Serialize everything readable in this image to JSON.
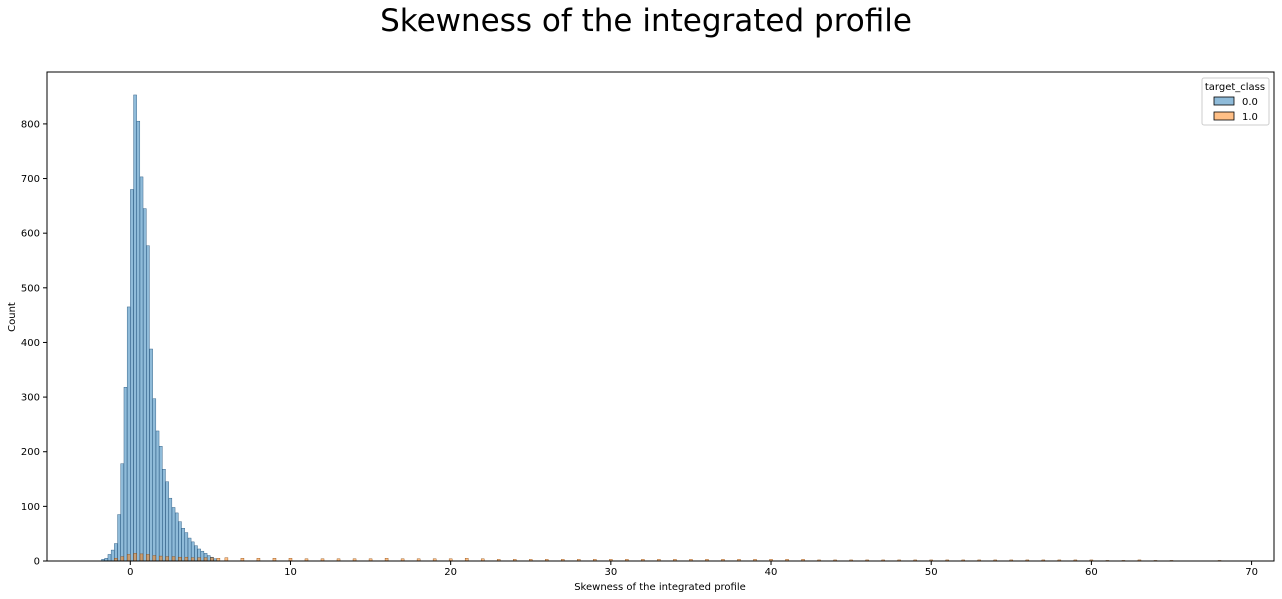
{
  "chart_data": {
    "type": "bar",
    "title": "Skewness of the integrated profile",
    "xlabel": "Skewness of the integrated profile",
    "ylabel": "Count",
    "xlim": [
      -5.2,
      71.4
    ],
    "ylim": [
      0,
      895
    ],
    "xticks": [
      0,
      10,
      20,
      30,
      40,
      50,
      60,
      70
    ],
    "yticks": [
      0,
      100,
      200,
      300,
      400,
      500,
      600,
      700,
      800
    ],
    "grid": false,
    "legend": {
      "title": "target_class",
      "placement": "top-right",
      "entries": [
        "0.0",
        "1.0"
      ]
    },
    "colors": {
      "0.0": "#1f77b4",
      "1.0": "#ff7f0e"
    },
    "bin_width": 0.19,
    "series": [
      {
        "name": "0.0",
        "x": [
          -1.7,
          -1.5,
          -1.3,
          -1.1,
          -0.9,
          -0.7,
          -0.5,
          -0.3,
          -0.1,
          0.1,
          0.3,
          0.5,
          0.7,
          0.9,
          1.1,
          1.3,
          1.5,
          1.7,
          1.9,
          2.1,
          2.3,
          2.5,
          2.7,
          2.9,
          3.1,
          3.3,
          3.5,
          3.7,
          3.9,
          4.1,
          4.3,
          4.5,
          4.7,
          4.9,
          5.1,
          5.3
        ],
        "values": [
          3,
          5,
          12,
          20,
          32,
          85,
          178,
          318,
          465,
          680,
          853,
          805,
          703,
          645,
          577,
          388,
          297,
          238,
          210,
          168,
          145,
          115,
          98,
          88,
          72,
          60,
          52,
          42,
          35,
          28,
          22,
          18,
          14,
          10,
          7,
          4
        ]
      },
      {
        "name": "1.0",
        "x": [
          -0.9,
          -0.5,
          -0.1,
          0.3,
          0.7,
          1.1,
          1.5,
          1.9,
          2.3,
          2.7,
          3.1,
          3.5,
          3.9,
          4.3,
          4.7,
          5.1,
          5.5,
          6.0,
          7.0,
          8.0,
          9.0,
          10.0,
          11.0,
          12.0,
          13.0,
          14.0,
          15.0,
          16.0,
          17.0,
          18.0,
          19.0,
          20.0,
          21.0,
          22.0,
          23.0,
          24.0,
          25.0,
          26.0,
          27.0,
          28.0,
          29.0,
          30.0,
          31.0,
          32.0,
          33.0,
          34.0,
          35.0,
          36.0,
          37.0,
          38.0,
          39.0,
          40.0,
          41.0,
          42.0,
          43.0,
          44.0,
          45.0,
          46.0,
          47.0,
          48.0,
          49.0,
          50.0,
          51.0,
          52.0,
          53.0,
          54.0,
          55.0,
          56.0,
          57.0,
          58.0,
          59.0,
          60.0,
          61.0,
          62.0,
          63.0,
          64.0,
          65.0,
          68.0
        ],
        "values": [
          5,
          8,
          12,
          14,
          13,
          12,
          10,
          9,
          8,
          8,
          7,
          7,
          6,
          6,
          6,
          6,
          5,
          6,
          5,
          5,
          5,
          5,
          4,
          4,
          4,
          4,
          4,
          5,
          4,
          4,
          4,
          4,
          5,
          4,
          3,
          3,
          3,
          3,
          3,
          3,
          3,
          3,
          3,
          3,
          3,
          3,
          3,
          3,
          3,
          3,
          3,
          3,
          3,
          3,
          2,
          2,
          2,
          2,
          2,
          2,
          2,
          2,
          2,
          2,
          2,
          2,
          2,
          2,
          2,
          2,
          2,
          2,
          1,
          1,
          2,
          1,
          1,
          1
        ]
      }
    ]
  }
}
